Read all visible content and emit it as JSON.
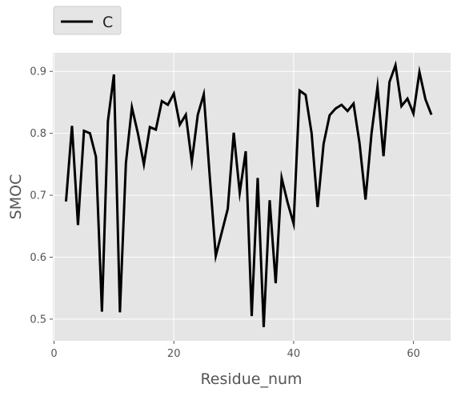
{
  "chart_data": {
    "type": "line",
    "title": "",
    "xlabel": "Residue_num",
    "ylabel": "SMOC",
    "xlim": [
      -0.2,
      66.2
    ],
    "ylim": [
      0.465,
      0.93
    ],
    "xticks": [
      0,
      20,
      40,
      60
    ],
    "yticks": [
      0.5,
      0.6,
      0.7,
      0.8,
      0.9
    ],
    "ytick_labels": [
      "0.5",
      "0.6",
      "0.7",
      "0.8",
      "0.9"
    ],
    "grid": true,
    "legend_position": "top-left, outside plot",
    "series": [
      {
        "name": "C",
        "color": "#000000",
        "x": [
          2,
          3,
          4,
          5,
          6,
          7,
          8,
          9,
          10,
          11,
          12,
          13,
          14,
          15,
          16,
          17,
          18,
          19,
          20,
          21,
          22,
          23,
          24,
          25,
          26,
          27,
          28,
          29,
          30,
          31,
          32,
          33,
          34,
          35,
          36,
          37,
          38,
          39,
          40,
          41,
          42,
          43,
          44,
          45,
          46,
          47,
          48,
          49,
          50,
          51,
          52,
          53,
          54,
          55,
          56,
          57,
          58,
          59,
          60,
          61,
          62,
          63
        ],
        "y": [
          0.69,
          0.812,
          0.652,
          0.804,
          0.8,
          0.762,
          0.512,
          0.82,
          0.895,
          0.511,
          0.752,
          0.842,
          0.8,
          0.75,
          0.81,
          0.806,
          0.852,
          0.846,
          0.864,
          0.814,
          0.83,
          0.754,
          0.83,
          0.863,
          0.73,
          0.602,
          0.64,
          0.678,
          0.801,
          0.704,
          0.771,
          0.505,
          0.728,
          0.487,
          0.692,
          0.558,
          0.728,
          0.688,
          0.654,
          0.869,
          0.862,
          0.8,
          0.681,
          0.783,
          0.829,
          0.84,
          0.846,
          0.836,
          0.848,
          0.784,
          0.693,
          0.8,
          0.875,
          0.763,
          0.883,
          0.91,
          0.844,
          0.856,
          0.832,
          0.899,
          0.855,
          0.83
        ]
      }
    ]
  }
}
